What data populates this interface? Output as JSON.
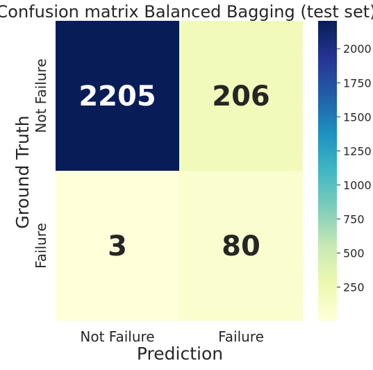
{
  "chart_data": {
    "type": "heatmap",
    "title": "Confusion matrix Balanced Bagging (test set)",
    "xlabel": "Prediction",
    "ylabel": "Ground Truth",
    "x_categories": [
      "Not Failure",
      "Failure"
    ],
    "y_categories": [
      "Not Failure",
      "Failure"
    ],
    "values": [
      [
        2205,
        206
      ],
      [
        3,
        80
      ]
    ],
    "colormap": "YlGnBu",
    "colorbar": {
      "range": [
        3,
        2205
      ],
      "ticks": [
        250,
        500,
        750,
        1000,
        1250,
        1500,
        1750,
        2000
      ]
    },
    "grid": false,
    "legend": "none"
  }
}
